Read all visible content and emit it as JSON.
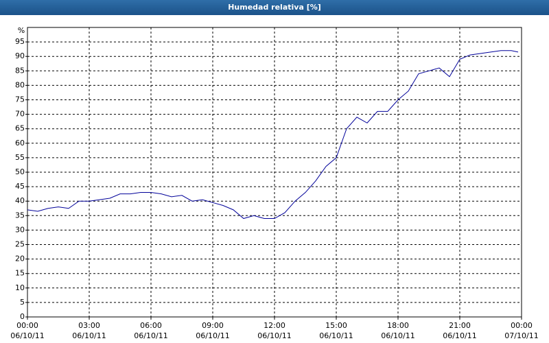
{
  "chart_data": {
    "type": "line",
    "title": "Humedad relativa [%]",
    "y_axis_label": "%",
    "x": [
      "2011-10-06T00:00",
      "2011-10-06T00:30",
      "2011-10-06T01:00",
      "2011-10-06T01:30",
      "2011-10-06T02:00",
      "2011-10-06T02:30",
      "2011-10-06T03:00",
      "2011-10-06T03:30",
      "2011-10-06T04:00",
      "2011-10-06T04:30",
      "2011-10-06T05:00",
      "2011-10-06T05:30",
      "2011-10-06T06:00",
      "2011-10-06T06:30",
      "2011-10-06T07:00",
      "2011-10-06T07:30",
      "2011-10-06T08:00",
      "2011-10-06T08:30",
      "2011-10-06T09:00",
      "2011-10-06T09:30",
      "2011-10-06T10:00",
      "2011-10-06T10:30",
      "2011-10-06T11:00",
      "2011-10-06T11:30",
      "2011-10-06T12:00",
      "2011-10-06T12:30",
      "2011-10-06T13:00",
      "2011-10-06T13:30",
      "2011-10-06T14:00",
      "2011-10-06T14:30",
      "2011-10-06T15:00",
      "2011-10-06T15:30",
      "2011-10-06T16:00",
      "2011-10-06T16:30",
      "2011-10-06T17:00",
      "2011-10-06T17:30",
      "2011-10-06T18:00",
      "2011-10-06T18:30",
      "2011-10-06T19:00",
      "2011-10-06T19:30",
      "2011-10-06T20:00",
      "2011-10-06T20:30",
      "2011-10-06T21:00",
      "2011-10-06T21:30",
      "2011-10-06T22:00",
      "2011-10-06T22:30",
      "2011-10-06T23:00",
      "2011-10-06T23:30",
      "2011-10-06T23:50"
    ],
    "series": [
      {
        "name": "Humedad relativa",
        "color": "#000099",
        "values": [
          37,
          36.5,
          37.5,
          38,
          37.5,
          40,
          40,
          40.5,
          41,
          42.5,
          42.5,
          43,
          43,
          42.5,
          41.5,
          42,
          40,
          40.5,
          39.5,
          38.5,
          37,
          34,
          35,
          34,
          34,
          36,
          40,
          43,
          47,
          52,
          55,
          65,
          69,
          67,
          71,
          71,
          75,
          78,
          84,
          85,
          86,
          83,
          89,
          90.5,
          91,
          91.5,
          92,
          92,
          91.5
        ]
      }
    ],
    "xlim": [
      "2011-10-06T00:00",
      "2011-10-07T00:00"
    ],
    "xticks": [
      {
        "value": "2011-10-06T00:00",
        "label": [
          "00:00",
          "06/10/11"
        ]
      },
      {
        "value": "2011-10-06T03:00",
        "label": [
          "03:00",
          "06/10/11"
        ]
      },
      {
        "value": "2011-10-06T06:00",
        "label": [
          "06:00",
          "06/10/11"
        ]
      },
      {
        "value": "2011-10-06T09:00",
        "label": [
          "09:00",
          "06/10/11"
        ]
      },
      {
        "value": "2011-10-06T12:00",
        "label": [
          "12:00",
          "06/10/11"
        ]
      },
      {
        "value": "2011-10-06T15:00",
        "label": [
          "15:00",
          "06/10/11"
        ]
      },
      {
        "value": "2011-10-06T18:00",
        "label": [
          "18:00",
          "06/10/11"
        ]
      },
      {
        "value": "2011-10-06T21:00",
        "label": [
          "21:00",
          "06/10/11"
        ]
      },
      {
        "value": "2011-10-07T00:00",
        "label": [
          "00:00",
          "07/10/11"
        ]
      }
    ],
    "ylim": [
      0,
      100
    ],
    "yticks": [
      0,
      5,
      10,
      15,
      20,
      25,
      30,
      35,
      40,
      45,
      50,
      55,
      60,
      65,
      70,
      75,
      80,
      85,
      90,
      95
    ],
    "grid": true
  }
}
